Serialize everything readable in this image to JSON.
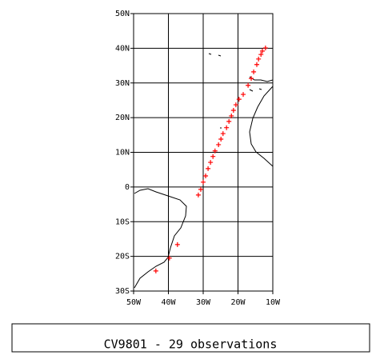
{
  "chart_data": {
    "type": "scatter",
    "title": "CV9801 - 29 observations",
    "x": [
      -43.6,
      -39.7,
      -37.4,
      -31.4,
      -30.7,
      -30.0,
      -29.3,
      -28.6,
      -27.9,
      -27.2,
      -26.6,
      -25.6,
      -24.9,
      -24.3,
      -23.3,
      -22.6,
      -21.9,
      -21.3,
      -20.6,
      -19.7,
      -18.5,
      -17.1,
      -16.2,
      -15.5,
      -14.6,
      -14.1,
      -13.4,
      -13.0,
      -12.1
    ],
    "values": [
      -24.2,
      -20.5,
      -16.6,
      -2.3,
      -0.7,
      1.4,
      3.2,
      5.3,
      7.1,
      8.8,
      10.4,
      12.2,
      13.8,
      15.4,
      17.1,
      18.9,
      20.5,
      22.1,
      23.7,
      25.3,
      26.7,
      29.3,
      31.3,
      33.2,
      35.3,
      36.9,
      38.2,
      39.2,
      40.1
    ],
    "color": "#ff0000",
    "xlim": [
      -50,
      -10
    ],
    "xticks": [
      {
        "value": -50,
        "label": "50W"
      },
      {
        "value": -40,
        "label": "40W"
      },
      {
        "value": -30,
        "label": "30W"
      },
      {
        "value": -20,
        "label": "20W"
      },
      {
        "value": -10,
        "label": "10W"
      }
    ],
    "ylim": [
      -30,
      50
    ],
    "yticks": [
      {
        "value": 50,
        "label": "50N"
      },
      {
        "value": 40,
        "label": "40N"
      },
      {
        "value": 30,
        "label": "30N"
      },
      {
        "value": 20,
        "label": "20N"
      },
      {
        "value": 10,
        "label": "10N"
      },
      0,
      {
        "value": -10,
        "label": "10S"
      },
      {
        "value": -20,
        "label": "20S"
      },
      {
        "value": -30,
        "label": "30S"
      }
    ],
    "grid": true
  }
}
